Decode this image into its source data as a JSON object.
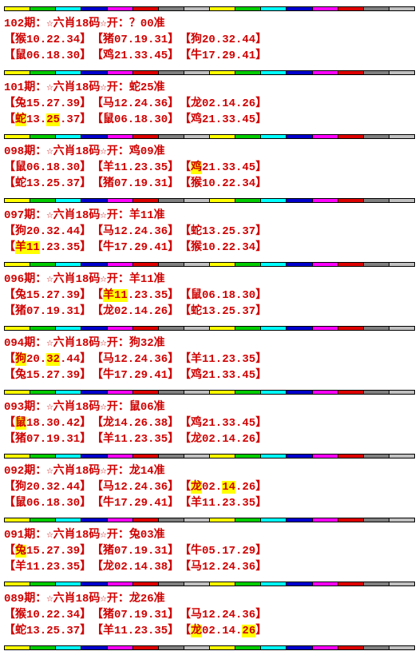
{
  "records": [
    {
      "title": "102期：☆六肖18码☆开：？00准",
      "rows": [
        [
          [
            "【猴10.22.34】"
          ],
          [
            "【猪07.19.31】"
          ],
          [
            "【狗20.32.44】"
          ]
        ],
        [
          [
            "【鼠06.18.30】"
          ],
          [
            "【鸡21.33.45】"
          ],
          [
            "【牛17.29.41】"
          ]
        ]
      ]
    },
    {
      "title": "101期：☆六肖18码☆开：蛇25准",
      "rows": [
        [
          [
            "【兔15.27.39】"
          ],
          [
            "【马12.24.36】"
          ],
          [
            "【龙02.14.26】"
          ]
        ],
        [
          [
            "【",
            {
              "text": "蛇",
              "highlight": true
            },
            "13.",
            {
              "text": "25",
              "highlight": true
            },
            ".37】"
          ],
          [
            "【鼠06.18.30】"
          ],
          [
            "【鸡21.33.45】"
          ]
        ]
      ]
    },
    {
      "title": "098期：☆六肖18码☆开：鸡09准",
      "rows": [
        [
          [
            "【鼠06.18.30】"
          ],
          [
            "【羊11.23.35】"
          ],
          [
            "【",
            {
              "text": "鸡",
              "highlight": true
            },
            "21.33.45】"
          ]
        ],
        [
          [
            "【蛇13.25.37】"
          ],
          [
            "【猪07.19.31】"
          ],
          [
            "【猴10.22.34】"
          ]
        ]
      ]
    },
    {
      "title": "097期：☆六肖18码☆开：羊11准",
      "rows": [
        [
          [
            "【狗20.32.44】"
          ],
          [
            "【马12.24.36】"
          ],
          [
            "【蛇13.25.37】"
          ]
        ],
        [
          [
            "【",
            {
              "text": "羊11",
              "highlight": true
            },
            ".23.35】"
          ],
          [
            "【牛17.29.41】"
          ],
          [
            "【猴10.22.34】"
          ]
        ]
      ]
    },
    {
      "title": "096期：☆六肖18码☆开：羊11准",
      "rows": [
        [
          [
            "【兔15.27.39】"
          ],
          [
            "【",
            {
              "text": "羊11",
              "highlight": true
            },
            ".23.35】"
          ],
          [
            "【鼠06.18.30】"
          ]
        ],
        [
          [
            "【猪07.19.31】"
          ],
          [
            "【龙02.14.26】"
          ],
          [
            "【蛇13.25.37】"
          ]
        ]
      ]
    },
    {
      "title": "094期：☆六肖18码☆开：狗32准",
      "rows": [
        [
          [
            "【",
            {
              "text": "狗",
              "highlight": true
            },
            "20.",
            {
              "text": "32",
              "highlight": true
            },
            ".44】"
          ],
          [
            "【马12.24.36】"
          ],
          [
            "【羊11.23.35】"
          ]
        ],
        [
          [
            "【兔15.27.39】"
          ],
          [
            "【牛17.29.41】"
          ],
          [
            "【鸡21.33.45】"
          ]
        ]
      ]
    },
    {
      "title": "093期：☆六肖18码☆开：鼠06准",
      "rows": [
        [
          [
            "【",
            {
              "text": "鼠",
              "highlight": true
            },
            "18.30.42】"
          ],
          [
            "【龙14.26.38】"
          ],
          [
            "【鸡21.33.45】"
          ]
        ],
        [
          [
            "【猪07.19.31】"
          ],
          [
            "【羊11.23.35】"
          ],
          [
            "【龙02.14.26】"
          ]
        ]
      ]
    },
    {
      "title": "092期：☆六肖18码☆开：龙14准",
      "rows": [
        [
          [
            "【狗20.32.44】"
          ],
          [
            "【马12.24.36】"
          ],
          [
            "【",
            {
              "text": "龙",
              "highlight": true
            },
            "02.",
            {
              "text": "14",
              "highlight": true
            },
            ".26】"
          ]
        ],
        [
          [
            "【鼠06.18.30】"
          ],
          [
            "【牛17.29.41】"
          ],
          [
            "【羊11.23.35】"
          ]
        ]
      ]
    },
    {
      "title": "091期：☆六肖18码☆开：兔03准",
      "rows": [
        [
          [
            "【",
            {
              "text": "兔",
              "highlight": true
            },
            "15.27.39】"
          ],
          [
            "【猪07.19.31】"
          ],
          [
            "【牛05.17.29】"
          ]
        ],
        [
          [
            "【羊11.23.35】"
          ],
          [
            "【龙02.14.38】"
          ],
          [
            "【马12.24.36】"
          ]
        ]
      ]
    },
    {
      "title": "089期：☆六肖18码☆开：龙26准",
      "rows": [
        [
          [
            "【猴10.22.34】"
          ],
          [
            "【猪07.19.31】"
          ],
          [
            "【马12.24.36】"
          ]
        ],
        [
          [
            "【蛇13.25.37】"
          ],
          [
            "【羊11.23.35】"
          ],
          [
            "【",
            {
              "text": "龙",
              "highlight": true
            },
            "02.14.",
            {
              "text": "26",
              "highlight": true
            },
            "】"
          ]
        ]
      ]
    }
  ]
}
